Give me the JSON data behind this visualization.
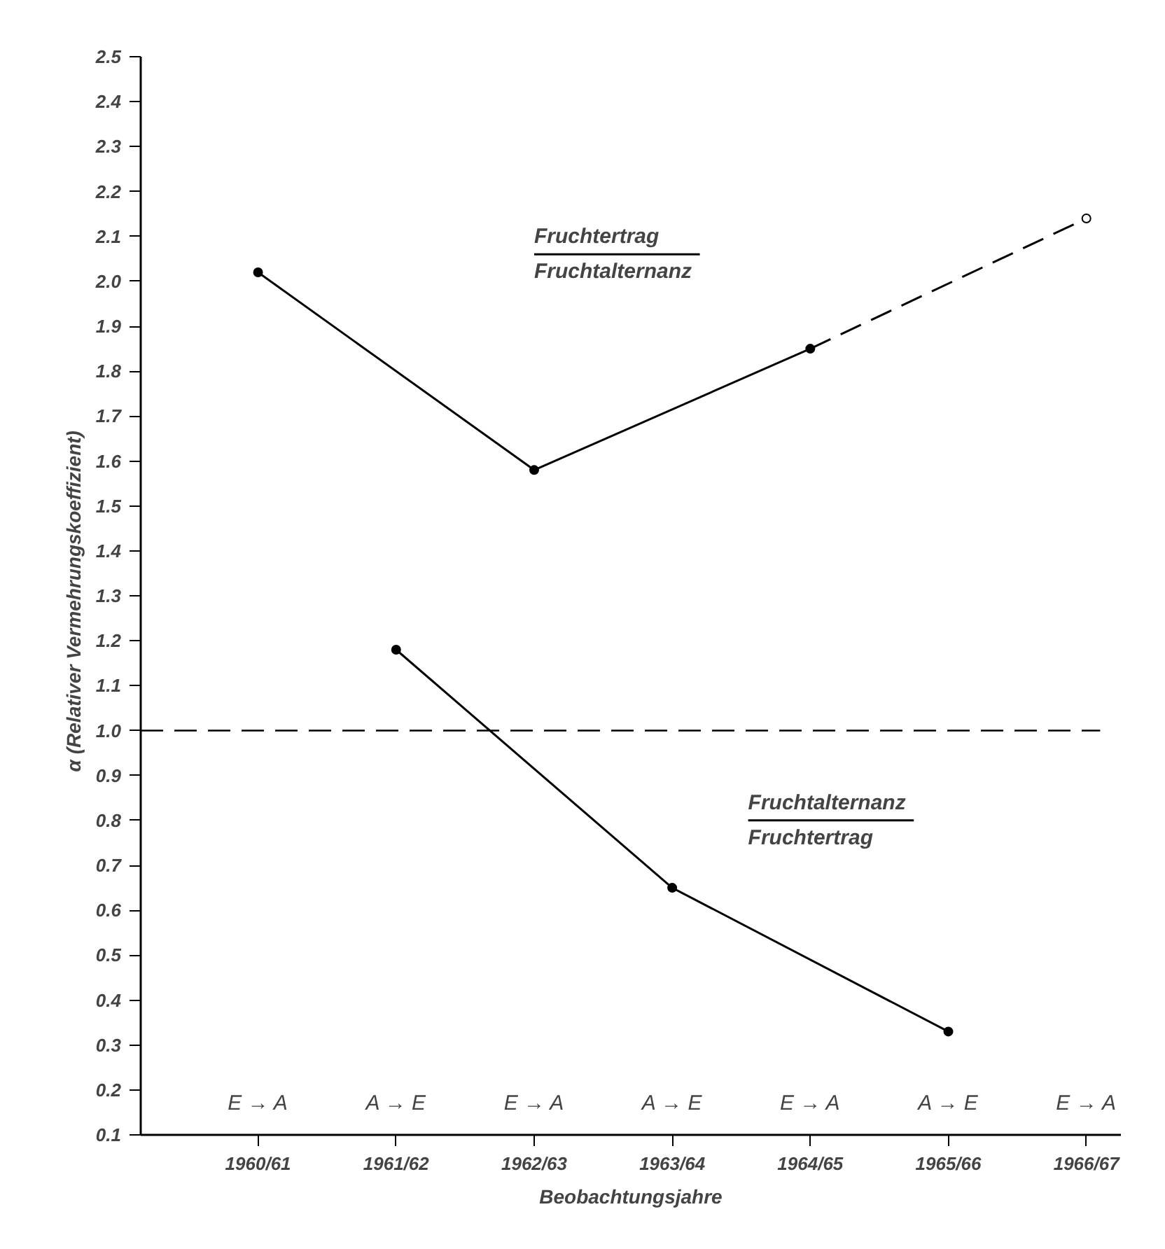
{
  "chart_data": {
    "type": "line",
    "xlabel": "Beobachtungsjahre",
    "ylabel": "α  (Relativer  Vermehrungskoeffizient)",
    "categories": [
      "1960/61",
      "1961/62",
      "1962/63",
      "1963/64",
      "1964/65",
      "1965/66",
      "1966/67"
    ],
    "series": [
      {
        "color": "#000000",
        "values": [
          2.02,
          null,
          1.58,
          null,
          1.85,
          null,
          null
        ],
        "line_style": "solid",
        "marker": "circle"
      },
      {
        "color": "#000000",
        "values": [
          null,
          null,
          null,
          null,
          1.85,
          null,
          2.14
        ],
        "line_style": "dashed",
        "marker": "circle"
      },
      {
        "color": "#000000",
        "values": [
          null,
          1.18,
          null,
          0.65,
          null,
          0.33,
          null
        ],
        "line_style": "solid",
        "marker": "circle"
      }
    ],
    "ylim": [
      0.1,
      2.5
    ],
    "yticks": [
      {
        "value": 0.1,
        "label": "0.1"
      },
      {
        "value": 0.2,
        "label": "0.2"
      },
      {
        "value": 0.3,
        "label": "0.3"
      },
      {
        "value": 0.4,
        "label": "0.4"
      },
      {
        "value": 0.5,
        "label": "0.5"
      },
      {
        "value": 0.6,
        "label": "0.6"
      },
      {
        "value": 0.7,
        "label": "0.7"
      },
      {
        "value": 0.8,
        "label": "0.8"
      },
      {
        "value": 0.9,
        "label": "0.9"
      },
      {
        "value": 1.0,
        "label": "1.0"
      },
      {
        "value": 1.1,
        "label": "1.1"
      },
      {
        "value": 1.2,
        "label": "1.2"
      },
      {
        "value": 1.3,
        "label": "1.3"
      },
      {
        "value": 1.4,
        "label": "1.4"
      },
      {
        "value": 1.5,
        "label": "1.5"
      },
      {
        "value": 1.6,
        "label": "1.6"
      },
      {
        "value": 1.7,
        "label": "1.7"
      },
      {
        "value": 1.8,
        "label": "1.8"
      },
      {
        "value": 1.9,
        "label": "1.9"
      },
      {
        "value": 2.0,
        "label": "2.0"
      },
      {
        "value": 2.1,
        "label": "2.1"
      },
      {
        "value": 2.2,
        "label": "2.2"
      },
      {
        "value": 2.3,
        "label": "2.3"
      },
      {
        "value": 2.4,
        "label": "2.4"
      },
      {
        "value": 2.5,
        "label": "2.5"
      }
    ],
    "ref_lines": [
      {
        "axis": "y",
        "value": 1.0,
        "line_style": "dashed",
        "color": "#000000"
      }
    ],
    "annotations": [
      "E → A",
      "A → E",
      "E → A",
      "A → E",
      "E → A",
      "A → E",
      "E → A",
      "Fruchtertrag",
      "Fruchtalternanz",
      "Fruchtalternanz",
      "Fruchtertrag"
    ],
    "grid": false
  }
}
